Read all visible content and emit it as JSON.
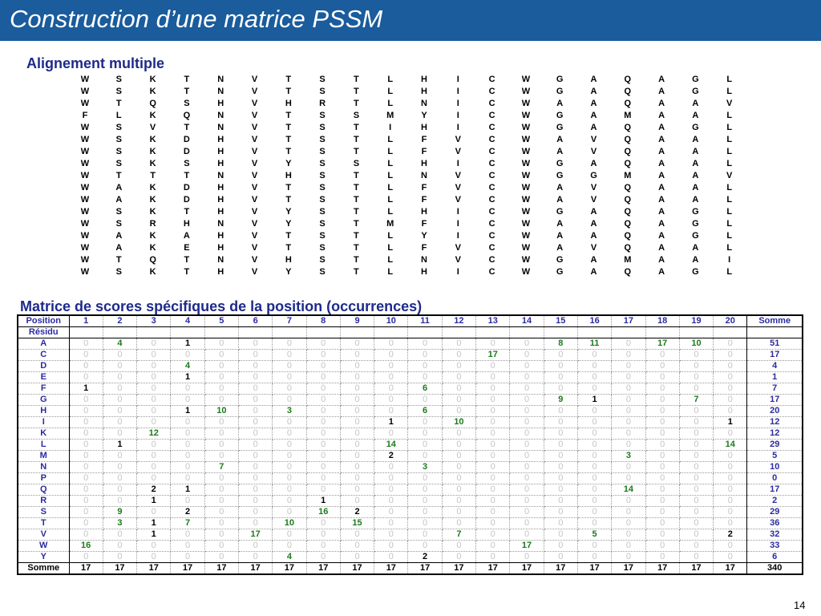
{
  "title": "Construction d’une matrice PSSM",
  "alignment_heading": "Alignement multiple",
  "alignment": [
    "WSKTNVTSTLHICWGAQAGL",
    "WSKTNVTSTLHICWGAQAGL",
    "WTQSHVHRTLNICWAAQAAV",
    "FLKQNVTSSMYICWGAMAAL",
    "WSVTNVTSTIHICWGAQAGL",
    "WSKDHVTSTLFVCWAVQAAL",
    "WSKDHVTSTLFVCWAVQAAL",
    "WSKSHVYSSLHICWGAQAAL",
    "WTTTNVHSTLNVCWGGMAAV",
    "WAKDHVTSTLFVCWAVQAAL",
    "WAKDHVTSTLFVCWAVQAAL",
    "WSKTHVYSTLHICWGAQAGL",
    "WSRHNVYSTMFICWAAQAGL",
    "WAKAHVTSTLYICWAAQAGL",
    "WAKEHVTSTLFVCWAVQAAL",
    "WTQTNVHSTLNVCWGAMAAI",
    "WSKTHVYSTLHICWGAQAGL"
  ],
  "matrix_heading": "Matrice de scores spécifiques de la position (occurrences)",
  "matrix": {
    "position_label": "Position",
    "residue_label": "Résidu",
    "sum_label": "Somme",
    "positions": [
      "1",
      "2",
      "3",
      "4",
      "5",
      "6",
      "7",
      "8",
      "9",
      "10",
      "11",
      "12",
      "13",
      "14",
      "15",
      "16",
      "17",
      "18",
      "19",
      "20"
    ],
    "rows": [
      {
        "residue": "A",
        "values": [
          0,
          4,
          0,
          1,
          0,
          0,
          0,
          0,
          0,
          0,
          0,
          0,
          0,
          0,
          8,
          11,
          0,
          17,
          10,
          0
        ],
        "sum": 51
      },
      {
        "residue": "C",
        "values": [
          0,
          0,
          0,
          0,
          0,
          0,
          0,
          0,
          0,
          0,
          0,
          0,
          17,
          0,
          0,
          0,
          0,
          0,
          0,
          0
        ],
        "sum": 17
      },
      {
        "residue": "D",
        "values": [
          0,
          0,
          0,
          4,
          0,
          0,
          0,
          0,
          0,
          0,
          0,
          0,
          0,
          0,
          0,
          0,
          0,
          0,
          0,
          0
        ],
        "sum": 4
      },
      {
        "residue": "E",
        "values": [
          0,
          0,
          0,
          1,
          0,
          0,
          0,
          0,
          0,
          0,
          0,
          0,
          0,
          0,
          0,
          0,
          0,
          0,
          0,
          0
        ],
        "sum": 1
      },
      {
        "residue": "F",
        "values": [
          1,
          0,
          0,
          0,
          0,
          0,
          0,
          0,
          0,
          0,
          6,
          0,
          0,
          0,
          0,
          0,
          0,
          0,
          0,
          0
        ],
        "sum": 7
      },
      {
        "residue": "G",
        "values": [
          0,
          0,
          0,
          0,
          0,
          0,
          0,
          0,
          0,
          0,
          0,
          0,
          0,
          0,
          9,
          1,
          0,
          0,
          7,
          0
        ],
        "sum": 17
      },
      {
        "residue": "H",
        "values": [
          0,
          0,
          0,
          1,
          10,
          0,
          3,
          0,
          0,
          0,
          6,
          0,
          0,
          0,
          0,
          0,
          0,
          0,
          0,
          0
        ],
        "sum": 20
      },
      {
        "residue": "I",
        "values": [
          0,
          0,
          0,
          0,
          0,
          0,
          0,
          0,
          0,
          1,
          0,
          10,
          0,
          0,
          0,
          0,
          0,
          0,
          0,
          1
        ],
        "sum": 12
      },
      {
        "residue": "K",
        "values": [
          0,
          0,
          12,
          0,
          0,
          0,
          0,
          0,
          0,
          0,
          0,
          0,
          0,
          0,
          0,
          0,
          0,
          0,
          0,
          0
        ],
        "sum": 12
      },
      {
        "residue": "L",
        "values": [
          0,
          1,
          0,
          0,
          0,
          0,
          0,
          0,
          0,
          14,
          0,
          0,
          0,
          0,
          0,
          0,
          0,
          0,
          0,
          14
        ],
        "sum": 29
      },
      {
        "residue": "M",
        "values": [
          0,
          0,
          0,
          0,
          0,
          0,
          0,
          0,
          0,
          2,
          0,
          0,
          0,
          0,
          0,
          0,
          3,
          0,
          0,
          0
        ],
        "sum": 5
      },
      {
        "residue": "N",
        "values": [
          0,
          0,
          0,
          0,
          7,
          0,
          0,
          0,
          0,
          0,
          3,
          0,
          0,
          0,
          0,
          0,
          0,
          0,
          0,
          0
        ],
        "sum": 10
      },
      {
        "residue": "P",
        "values": [
          0,
          0,
          0,
          0,
          0,
          0,
          0,
          0,
          0,
          0,
          0,
          0,
          0,
          0,
          0,
          0,
          0,
          0,
          0,
          0
        ],
        "sum": 0
      },
      {
        "residue": "Q",
        "values": [
          0,
          0,
          2,
          1,
          0,
          0,
          0,
          0,
          0,
          0,
          0,
          0,
          0,
          0,
          0,
          0,
          14,
          0,
          0,
          0
        ],
        "sum": 17
      },
      {
        "residue": "R",
        "values": [
          0,
          0,
          1,
          0,
          0,
          0,
          0,
          1,
          0,
          0,
          0,
          0,
          0,
          0,
          0,
          0,
          0,
          0,
          0,
          0
        ],
        "sum": 2
      },
      {
        "residue": "S",
        "values": [
          0,
          9,
          0,
          2,
          0,
          0,
          0,
          16,
          2,
          0,
          0,
          0,
          0,
          0,
          0,
          0,
          0,
          0,
          0,
          0
        ],
        "sum": 29
      },
      {
        "residue": "T",
        "values": [
          0,
          3,
          1,
          7,
          0,
          0,
          10,
          0,
          15,
          0,
          0,
          0,
          0,
          0,
          0,
          0,
          0,
          0,
          0,
          0
        ],
        "sum": 36
      },
      {
        "residue": "V",
        "values": [
          0,
          0,
          1,
          0,
          0,
          17,
          0,
          0,
          0,
          0,
          0,
          7,
          0,
          0,
          0,
          5,
          0,
          0,
          0,
          2
        ],
        "sum": 32
      },
      {
        "residue": "W",
        "values": [
          16,
          0,
          0,
          0,
          0,
          0,
          0,
          0,
          0,
          0,
          0,
          0,
          0,
          17,
          0,
          0,
          0,
          0,
          0,
          0
        ],
        "sum": 33
      },
      {
        "residue": "Y",
        "values": [
          0,
          0,
          0,
          0,
          0,
          0,
          4,
          0,
          0,
          0,
          2,
          0,
          0,
          0,
          0,
          0,
          0,
          0,
          0,
          0
        ],
        "sum": 6
      }
    ],
    "totals": [
      "17",
      "17",
      "17",
      "17",
      "17",
      "17",
      "17",
      "17",
      "17",
      "17",
      "17",
      "17",
      "17",
      "17",
      "17",
      "17",
      "17",
      "17",
      "17",
      "17"
    ],
    "grand_total": "340"
  },
  "colors": {
    "title_bar": "#1a5c9c",
    "heading": "#1e2a8a",
    "label": "#2b2ba0",
    "high_count": "#1b7a1b",
    "zero": "#c4c4c4"
  },
  "page_number": "14"
}
